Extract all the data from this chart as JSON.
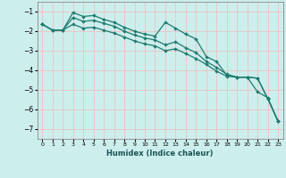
{
  "xlabel": "Humidex (Indice chaleur)",
  "background_color": "#cceeed",
  "grid_color": "#f5b8b8",
  "line_color": "#1e7b6e",
  "xlim": [
    -0.5,
    23.5
  ],
  "ylim": [
    -7.5,
    -0.5
  ],
  "yticks": [
    -1,
    -2,
    -3,
    -4,
    -5,
    -6,
    -7
  ],
  "xticks": [
    0,
    1,
    2,
    3,
    4,
    5,
    6,
    7,
    8,
    9,
    10,
    11,
    12,
    13,
    14,
    15,
    16,
    17,
    18,
    19,
    20,
    21,
    22,
    23
  ],
  "line1_x": [
    0,
    1,
    2,
    3,
    4,
    5,
    6,
    7,
    8,
    9,
    10,
    11,
    12,
    13,
    14,
    15,
    16,
    17,
    18,
    19,
    20,
    21,
    22,
    23
  ],
  "line1_y": [
    -1.65,
    -1.95,
    -1.95,
    -1.05,
    -1.25,
    -1.2,
    -1.4,
    -1.55,
    -1.8,
    -2.0,
    -2.15,
    -2.25,
    -1.55,
    -1.85,
    -2.15,
    -2.4,
    -3.3,
    -3.55,
    -4.25,
    -4.35,
    -4.35,
    -5.1,
    -5.4,
    -6.6
  ],
  "line2_x": [
    0,
    1,
    2,
    3,
    4,
    5,
    6,
    7,
    8,
    9,
    10,
    11,
    12,
    13,
    14,
    15,
    16,
    17,
    18,
    19,
    20,
    21,
    22,
    23
  ],
  "line2_y": [
    -1.65,
    -1.95,
    -1.95,
    -1.3,
    -1.5,
    -1.45,
    -1.6,
    -1.75,
    -2.0,
    -2.2,
    -2.35,
    -2.45,
    -2.7,
    -2.55,
    -2.85,
    -3.1,
    -3.55,
    -3.85,
    -4.2,
    -4.35,
    -4.35,
    -4.4,
    -5.45,
    -6.6
  ],
  "line3_x": [
    0,
    1,
    2,
    3,
    4,
    5,
    6,
    7,
    8,
    9,
    10,
    11,
    12,
    13,
    14,
    15,
    16,
    17,
    18,
    19,
    20,
    21,
    22,
    23
  ],
  "line3_y": [
    -1.65,
    -1.95,
    -1.95,
    -1.65,
    -1.85,
    -1.8,
    -1.95,
    -2.1,
    -2.3,
    -2.5,
    -2.65,
    -2.75,
    -3.0,
    -2.9,
    -3.15,
    -3.4,
    -3.7,
    -4.05,
    -4.3,
    -4.35,
    -4.35,
    -4.4,
    -5.45,
    -6.6
  ]
}
